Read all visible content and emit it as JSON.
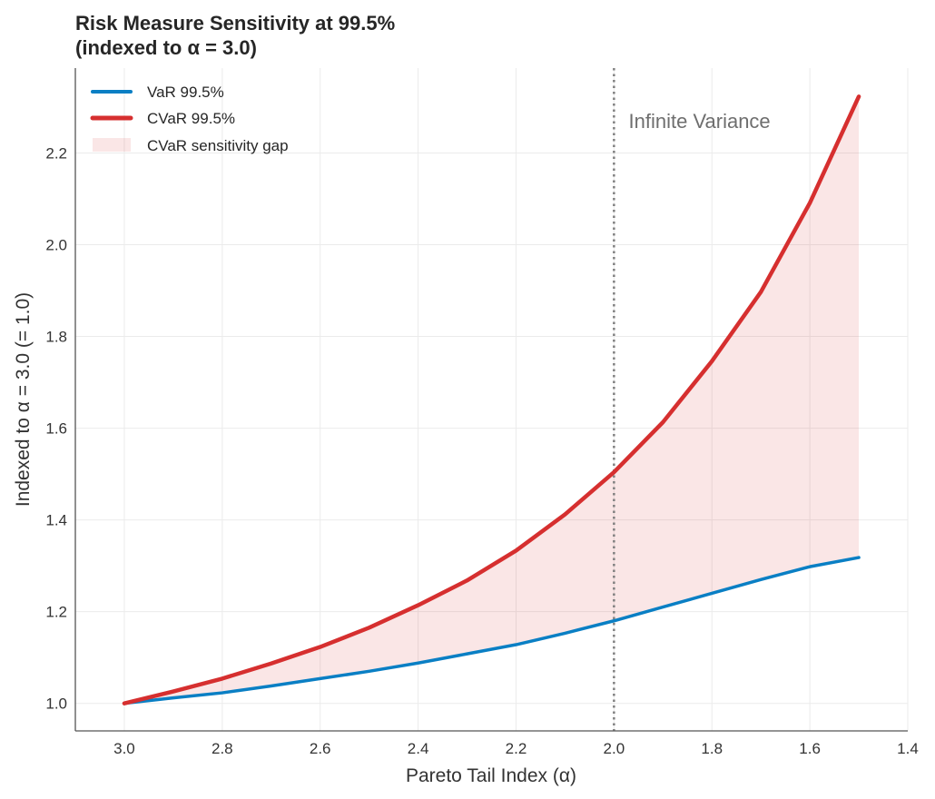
{
  "chart_data": {
    "type": "line",
    "title_line1": "Risk Measure Sensitivity at 99.5%",
    "title_line2": "(indexed to α = 3.0)",
    "xlabel": "Pareto Tail Index (α)",
    "ylabel": "Indexed to α = 3.0 (= 1.0)",
    "xlim": [
      3.1,
      1.4
    ],
    "ylim": [
      0.94,
      2.385
    ],
    "x_reversed": true,
    "grid": true,
    "x_ticks": [
      3.0,
      2.8,
      2.6,
      2.4,
      2.2,
      2.0,
      1.8,
      1.6,
      1.4
    ],
    "x_tick_labels": [
      "3.0",
      "2.8",
      "2.6",
      "2.4",
      "2.2",
      "2.0",
      "1.8",
      "1.6",
      "1.4"
    ],
    "y_ticks": [
      1.0,
      1.2,
      1.4,
      1.6,
      1.8,
      2.0,
      2.2
    ],
    "y_tick_labels": [
      "1.0",
      "1.2",
      "1.4",
      "1.6",
      "1.8",
      "2.0",
      "2.2"
    ],
    "x": [
      3.0,
      2.9,
      2.8,
      2.7,
      2.6,
      2.5,
      2.4,
      2.3,
      2.2,
      2.1,
      2.0,
      1.9,
      1.8,
      1.7,
      1.6,
      1.5
    ],
    "series": [
      {
        "name": "VaR 99.5%",
        "color": "#0a7fc4",
        "values": [
          1.0,
          1.012,
          1.023,
          1.038,
          1.054,
          1.07,
          1.088,
          1.108,
          1.128,
          1.153,
          1.18,
          1.21,
          1.24,
          1.27,
          1.298,
          1.318
        ]
      },
      {
        "name": "CVaR 99.5%",
        "color": "#d62f2f",
        "values": [
          1.0,
          1.026,
          1.054,
          1.087,
          1.123,
          1.165,
          1.214,
          1.268,
          1.333,
          1.412,
          1.504,
          1.613,
          1.746,
          1.897,
          2.091,
          2.323
        ]
      }
    ],
    "fill": {
      "name": "CVaR sensitivity gap",
      "color": "#d62f2f",
      "opacity": 0.12
    },
    "vline": {
      "x": 2.0,
      "color": "#808080"
    },
    "annotation": {
      "text": "Infinite Variance",
      "x": 1.97,
      "y": 2.27
    },
    "legend_placement": "top-left"
  }
}
